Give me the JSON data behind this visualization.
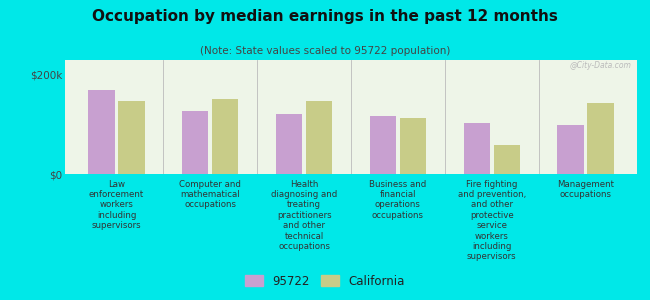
{
  "title": "Occupation by median earnings in the past 12 months",
  "subtitle": "(Note: State values scaled to 95722 population)",
  "background_color": "#00e8e8",
  "plot_bg_color": "#eef5e8",
  "categories": [
    "Law\nenforcement\nworkers\nincluding\nsupervisors",
    "Computer and\nmathematical\noccupations",
    "Health\ndiagnosing and\ntreating\npractitioners\nand other\ntechnical\noccupations",
    "Business and\nfinancial\noperations\noccupations",
    "Fire fighting\nand prevention,\nand other\nprotective\nservice\nworkers\nincluding\nsupervisors",
    "Management\noccupations"
  ],
  "values_95722": [
    170000,
    128000,
    122000,
    118000,
    102000,
    98000
  ],
  "values_california": [
    148000,
    152000,
    148000,
    112000,
    58000,
    143000
  ],
  "color_95722": "#c8a0d0",
  "color_california": "#c8cc88",
  "ylim": [
    0,
    230000
  ],
  "yticks": [
    0,
    200000
  ],
  "ytick_labels": [
    "$0",
    "$200k"
  ],
  "legend_label_95722": "95722",
  "legend_label_california": "California",
  "watermark": "@City-Data.com"
}
